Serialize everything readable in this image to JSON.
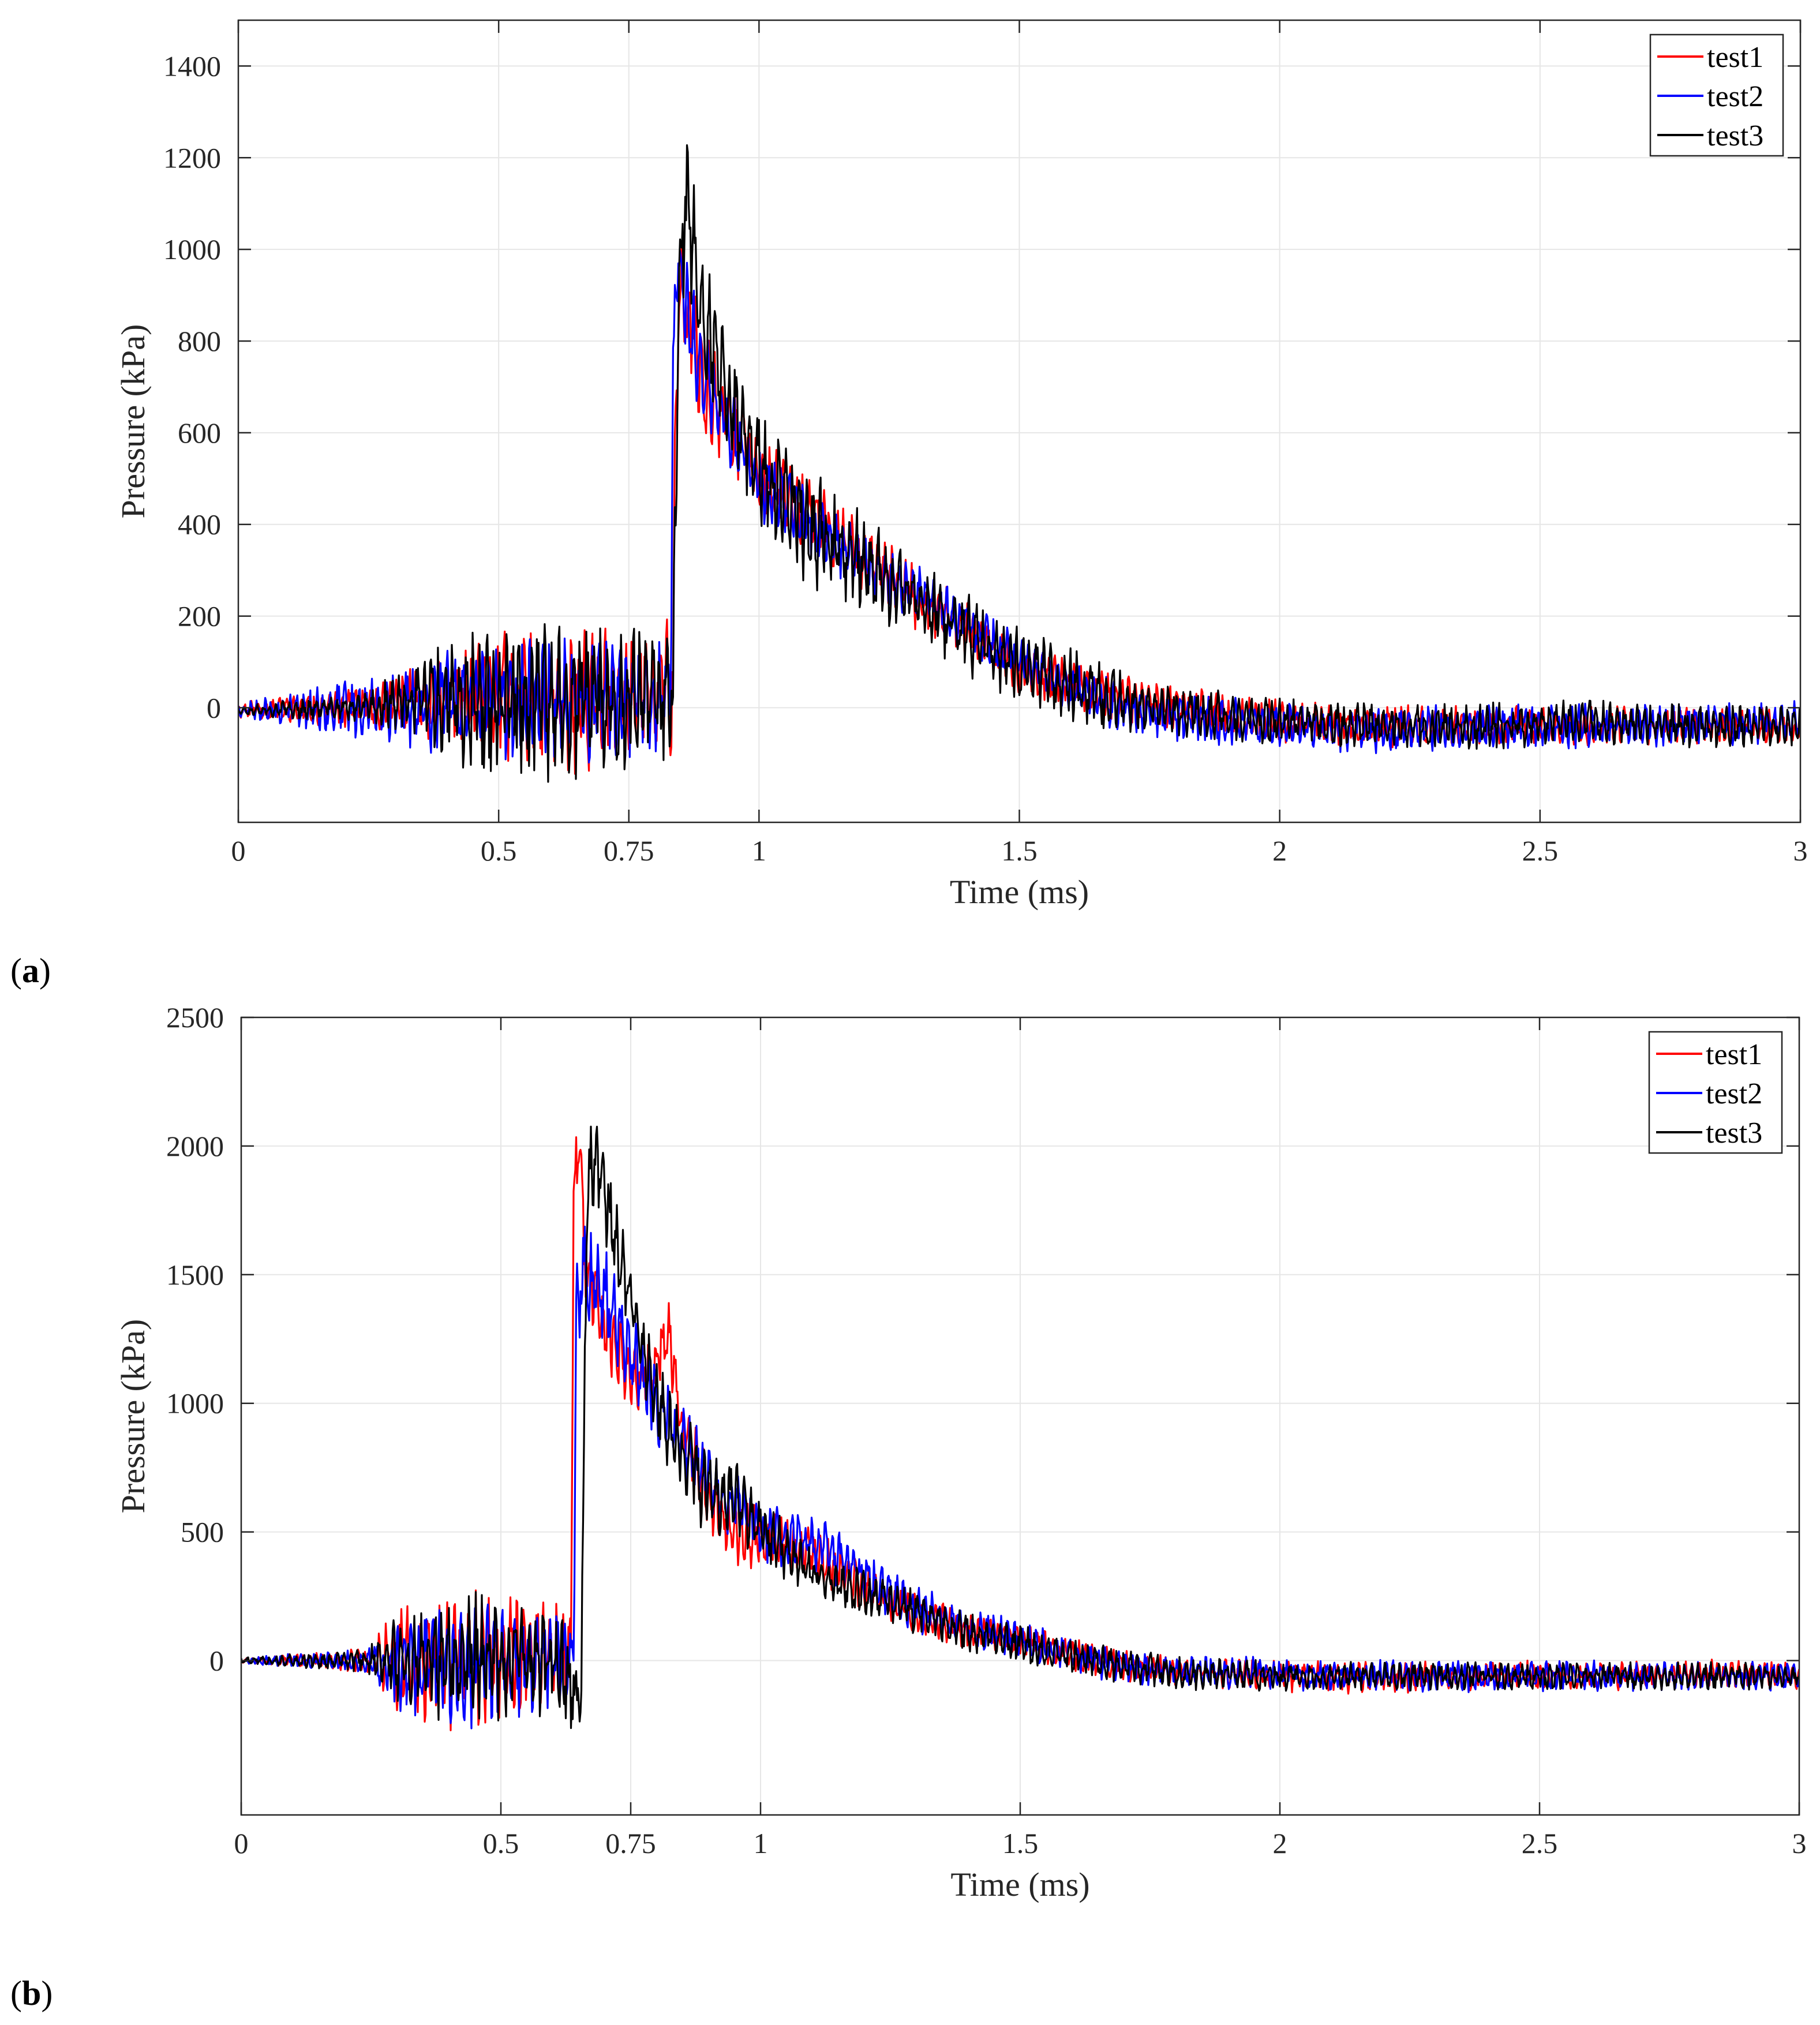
{
  "chart_data": [
    {
      "panel_label": "a",
      "type": "line",
      "xlabel": "Time (ms)",
      "ylabel": "Pressure (kPa)",
      "xlim": [
        0,
        3
      ],
      "ylim": [
        -250,
        1500
      ],
      "xticks": [
        0,
        0.5,
        0.75,
        1,
        1.5,
        2,
        2.5,
        3
      ],
      "xtick_labels": [
        "0",
        "0.5",
        "0.75",
        "1",
        "1.5",
        "2",
        "2.5",
        "3"
      ],
      "yticks": [
        0,
        200,
        400,
        600,
        800,
        1000,
        1200,
        1400
      ],
      "ytick_labels": [
        "0",
        "200",
        "400",
        "600",
        "800",
        "1000",
        "1200",
        "1400"
      ],
      "grid": true,
      "legend_position": "top-right",
      "series": [
        {
          "name": "test1",
          "color": "#ff0000",
          "anchors": [
            [
              0,
              -5
            ],
            [
              0.25,
              0
            ],
            [
              0.3,
              10
            ],
            [
              0.4,
              20
            ],
            [
              0.5,
              30
            ],
            [
              0.6,
              10
            ],
            [
              0.7,
              20
            ],
            [
              0.8,
              30
            ],
            [
              0.835,
              40
            ],
            [
              0.84,
              700
            ],
            [
              0.85,
              920
            ],
            [
              0.86,
              850
            ],
            [
              0.88,
              780
            ],
            [
              0.9,
              700
            ],
            [
              0.95,
              620
            ],
            [
              1.0,
              500
            ],
            [
              1.05,
              470
            ],
            [
              1.1,
              420
            ],
            [
              1.2,
              330
            ],
            [
              1.3,
              240
            ],
            [
              1.4,
              170
            ],
            [
              1.5,
              90
            ],
            [
              1.6,
              50
            ],
            [
              1.7,
              20
            ],
            [
              1.8,
              0
            ],
            [
              2.0,
              -30
            ],
            [
              2.2,
              -40
            ],
            [
              2.4,
              -40
            ],
            [
              2.6,
              -40
            ],
            [
              2.8,
              -40
            ],
            [
              3.0,
              -40
            ]
          ],
          "noise_amplitude": [
            [
              0,
              15
            ],
            [
              0.25,
              40
            ],
            [
              0.45,
              110
            ],
            [
              0.6,
              140
            ],
            [
              0.83,
              130
            ],
            [
              0.85,
              120
            ],
            [
              0.9,
              110
            ],
            [
              1.0,
              80
            ],
            [
              1.3,
              60
            ],
            [
              1.6,
              45
            ],
            [
              2.0,
              40
            ],
            [
              3.0,
              35
            ]
          ],
          "seed": 11
        },
        {
          "name": "test2",
          "color": "#0000ff",
          "anchors": [
            [
              0,
              -5
            ],
            [
              0.25,
              0
            ],
            [
              0.3,
              5
            ],
            [
              0.4,
              10
            ],
            [
              0.5,
              20
            ],
            [
              0.6,
              10
            ],
            [
              0.7,
              15
            ],
            [
              0.8,
              20
            ],
            [
              0.83,
              30
            ],
            [
              0.835,
              750
            ],
            [
              0.845,
              1000
            ],
            [
              0.855,
              900
            ],
            [
              0.88,
              780
            ],
            [
              0.9,
              700
            ],
            [
              0.95,
              600
            ],
            [
              1.0,
              490
            ],
            [
              1.1,
              400
            ],
            [
              1.2,
              320
            ],
            [
              1.3,
              250
            ],
            [
              1.4,
              180
            ],
            [
              1.5,
              100
            ],
            [
              1.6,
              40
            ],
            [
              1.7,
              0
            ],
            [
              1.8,
              -20
            ],
            [
              2.0,
              -40
            ],
            [
              2.2,
              -50
            ],
            [
              2.4,
              -40
            ],
            [
              2.6,
              -40
            ],
            [
              2.8,
              -40
            ],
            [
              3.0,
              -30
            ]
          ],
          "noise_amplitude": [
            [
              0,
              15
            ],
            [
              0.25,
              60
            ],
            [
              0.45,
              110
            ],
            [
              0.6,
              120
            ],
            [
              0.83,
              110
            ],
            [
              0.9,
              100
            ],
            [
              1.0,
              70
            ],
            [
              1.3,
              55
            ],
            [
              1.6,
              50
            ],
            [
              2.0,
              45
            ],
            [
              3.0,
              40
            ]
          ],
          "seed": 23
        },
        {
          "name": "test3",
          "color": "#000000",
          "anchors": [
            [
              0,
              -5
            ],
            [
              0.25,
              0
            ],
            [
              0.3,
              10
            ],
            [
              0.4,
              20
            ],
            [
              0.5,
              20
            ],
            [
              0.6,
              10
            ],
            [
              0.7,
              10
            ],
            [
              0.8,
              20
            ],
            [
              0.835,
              30
            ],
            [
              0.845,
              900
            ],
            [
              0.86,
              1120
            ],
            [
              0.875,
              1000
            ],
            [
              0.9,
              820
            ],
            [
              0.95,
              650
            ],
            [
              1.0,
              520
            ],
            [
              1.05,
              450
            ],
            [
              1.1,
              390
            ],
            [
              1.2,
              320
            ],
            [
              1.3,
              230
            ],
            [
              1.4,
              160
            ],
            [
              1.5,
              90
            ],
            [
              1.6,
              50
            ],
            [
              1.7,
              10
            ],
            [
              1.8,
              -10
            ],
            [
              2.0,
              -30
            ],
            [
              2.2,
              -40
            ],
            [
              2.4,
              -40
            ],
            [
              2.6,
              -30
            ],
            [
              2.8,
              -40
            ],
            [
              3.0,
              -40
            ]
          ],
          "noise_amplitude": [
            [
              0,
              10
            ],
            [
              0.25,
              30
            ],
            [
              0.45,
              140
            ],
            [
              0.6,
              160
            ],
            [
              0.83,
              130
            ],
            [
              0.87,
              150
            ],
            [
              0.95,
              110
            ],
            [
              1.1,
              120
            ],
            [
              1.3,
              80
            ],
            [
              1.6,
              75
            ],
            [
              1.8,
              50
            ],
            [
              2.0,
              45
            ],
            [
              3.0,
              40
            ]
          ],
          "seed": 37
        }
      ]
    },
    {
      "panel_label": "b",
      "type": "line",
      "xlabel": "Time (ms)",
      "ylabel": "Pressure (kPa)",
      "xlim": [
        0,
        3
      ],
      "ylim": [
        -600,
        2500
      ],
      "xticks": [
        0,
        0.5,
        0.75,
        1,
        1.5,
        2,
        2.5,
        3
      ],
      "xtick_labels": [
        "0",
        "0.5",
        "0.75",
        "1",
        "1.5",
        "2",
        "2.5",
        "3"
      ],
      "yticks": [
        0,
        500,
        1000,
        1500,
        2000,
        2500
      ],
      "ytick_labels": [
        "0",
        "500",
        "1000",
        "1500",
        "2000",
        "2500"
      ],
      "grid": true,
      "legend_position": "top-right",
      "series": [
        {
          "name": "test1",
          "color": "#ff0000",
          "anchors": [
            [
              0,
              0
            ],
            [
              0.24,
              0
            ],
            [
              0.3,
              0
            ],
            [
              0.4,
              0
            ],
            [
              0.5,
              0
            ],
            [
              0.6,
              0
            ],
            [
              0.635,
              20
            ],
            [
              0.64,
              1800
            ],
            [
              0.65,
              2050
            ],
            [
              0.66,
              1600
            ],
            [
              0.7,
              1300
            ],
            [
              0.75,
              1100
            ],
            [
              0.8,
              1150
            ],
            [
              0.82,
              1300
            ],
            [
              0.85,
              900
            ],
            [
              0.9,
              650
            ],
            [
              0.95,
              500
            ],
            [
              1.0,
              480
            ],
            [
              1.1,
              420
            ],
            [
              1.2,
              280
            ],
            [
              1.3,
              180
            ],
            [
              1.4,
              120
            ],
            [
              1.5,
              80
            ],
            [
              1.6,
              20
            ],
            [
              1.7,
              -20
            ],
            [
              1.8,
              -40
            ],
            [
              2.0,
              -60
            ],
            [
              2.2,
              -70
            ],
            [
              2.4,
              -60
            ],
            [
              2.6,
              -60
            ],
            [
              2.8,
              -50
            ],
            [
              3.0,
              -60
            ]
          ],
          "noise_amplitude": [
            [
              0,
              10
            ],
            [
              0.24,
              40
            ],
            [
              0.3,
              180
            ],
            [
              0.45,
              260
            ],
            [
              0.6,
              180
            ],
            [
              0.64,
              200
            ],
            [
              0.7,
              150
            ],
            [
              0.9,
              120
            ],
            [
              1.1,
              90
            ],
            [
              1.4,
              60
            ],
            [
              1.8,
              50
            ],
            [
              2.0,
              55
            ],
            [
              3.0,
              45
            ]
          ],
          "seed": 51
        },
        {
          "name": "test2",
          "color": "#0000ff",
          "anchors": [
            [
              0,
              0
            ],
            [
              0.24,
              0
            ],
            [
              0.3,
              0
            ],
            [
              0.4,
              0
            ],
            [
              0.5,
              0
            ],
            [
              0.6,
              0
            ],
            [
              0.64,
              20
            ],
            [
              0.645,
              1300
            ],
            [
              0.655,
              1500
            ],
            [
              0.7,
              1400
            ],
            [
              0.75,
              1200
            ],
            [
              0.8,
              1000
            ],
            [
              0.85,
              850
            ],
            [
              0.9,
              700
            ],
            [
              0.95,
              600
            ],
            [
              1.0,
              500
            ],
            [
              1.1,
              460
            ],
            [
              1.2,
              330
            ],
            [
              1.3,
              200
            ],
            [
              1.4,
              130
            ],
            [
              1.5,
              80
            ],
            [
              1.6,
              20
            ],
            [
              1.7,
              -20
            ],
            [
              1.8,
              -40
            ],
            [
              2.0,
              -50
            ],
            [
              2.2,
              -60
            ],
            [
              2.4,
              -60
            ],
            [
              2.6,
              -60
            ],
            [
              2.8,
              -60
            ],
            [
              3.0,
              -60
            ]
          ],
          "noise_amplitude": [
            [
              0,
              10
            ],
            [
              0.24,
              40
            ],
            [
              0.3,
              160
            ],
            [
              0.45,
              240
            ],
            [
              0.6,
              170
            ],
            [
              0.66,
              200
            ],
            [
              0.75,
              160
            ],
            [
              0.9,
              120
            ],
            [
              1.1,
              100
            ],
            [
              1.4,
              70
            ],
            [
              1.8,
              55
            ],
            [
              2.0,
              55
            ],
            [
              3.0,
              50
            ]
          ],
          "seed": 63
        },
        {
          "name": "test3",
          "color": "#000000",
          "anchors": [
            [
              0,
              0
            ],
            [
              0.24,
              0
            ],
            [
              0.3,
              0
            ],
            [
              0.4,
              0
            ],
            [
              0.5,
              0
            ],
            [
              0.6,
              0
            ],
            [
              0.655,
              -150
            ],
            [
              0.665,
              1800
            ],
            [
              0.68,
              2000
            ],
            [
              0.7,
              1800
            ],
            [
              0.75,
              1400
            ],
            [
              0.8,
              1000
            ],
            [
              0.85,
              800
            ],
            [
              0.9,
              650
            ],
            [
              0.95,
              620
            ],
            [
              1.0,
              500
            ],
            [
              1.1,
              330
            ],
            [
              1.2,
              260
            ],
            [
              1.3,
              190
            ],
            [
              1.4,
              110
            ],
            [
              1.5,
              60
            ],
            [
              1.6,
              20
            ],
            [
              1.7,
              -20
            ],
            [
              1.8,
              -50
            ],
            [
              2.0,
              -60
            ],
            [
              2.2,
              -60
            ],
            [
              2.4,
              -60
            ],
            [
              2.6,
              -60
            ],
            [
              2.8,
              -60
            ],
            [
              3.0,
              -60
            ]
          ],
          "noise_amplitude": [
            [
              0,
              10
            ],
            [
              0.24,
              40
            ],
            [
              0.3,
              150
            ],
            [
              0.45,
              260
            ],
            [
              0.6,
              170
            ],
            [
              0.66,
              200
            ],
            [
              0.75,
              140
            ],
            [
              0.9,
              150
            ],
            [
              1.1,
              90
            ],
            [
              1.4,
              70
            ],
            [
              1.8,
              55
            ],
            [
              2.0,
              50
            ],
            [
              3.0,
              45
            ]
          ],
          "seed": 79
        }
      ]
    }
  ]
}
